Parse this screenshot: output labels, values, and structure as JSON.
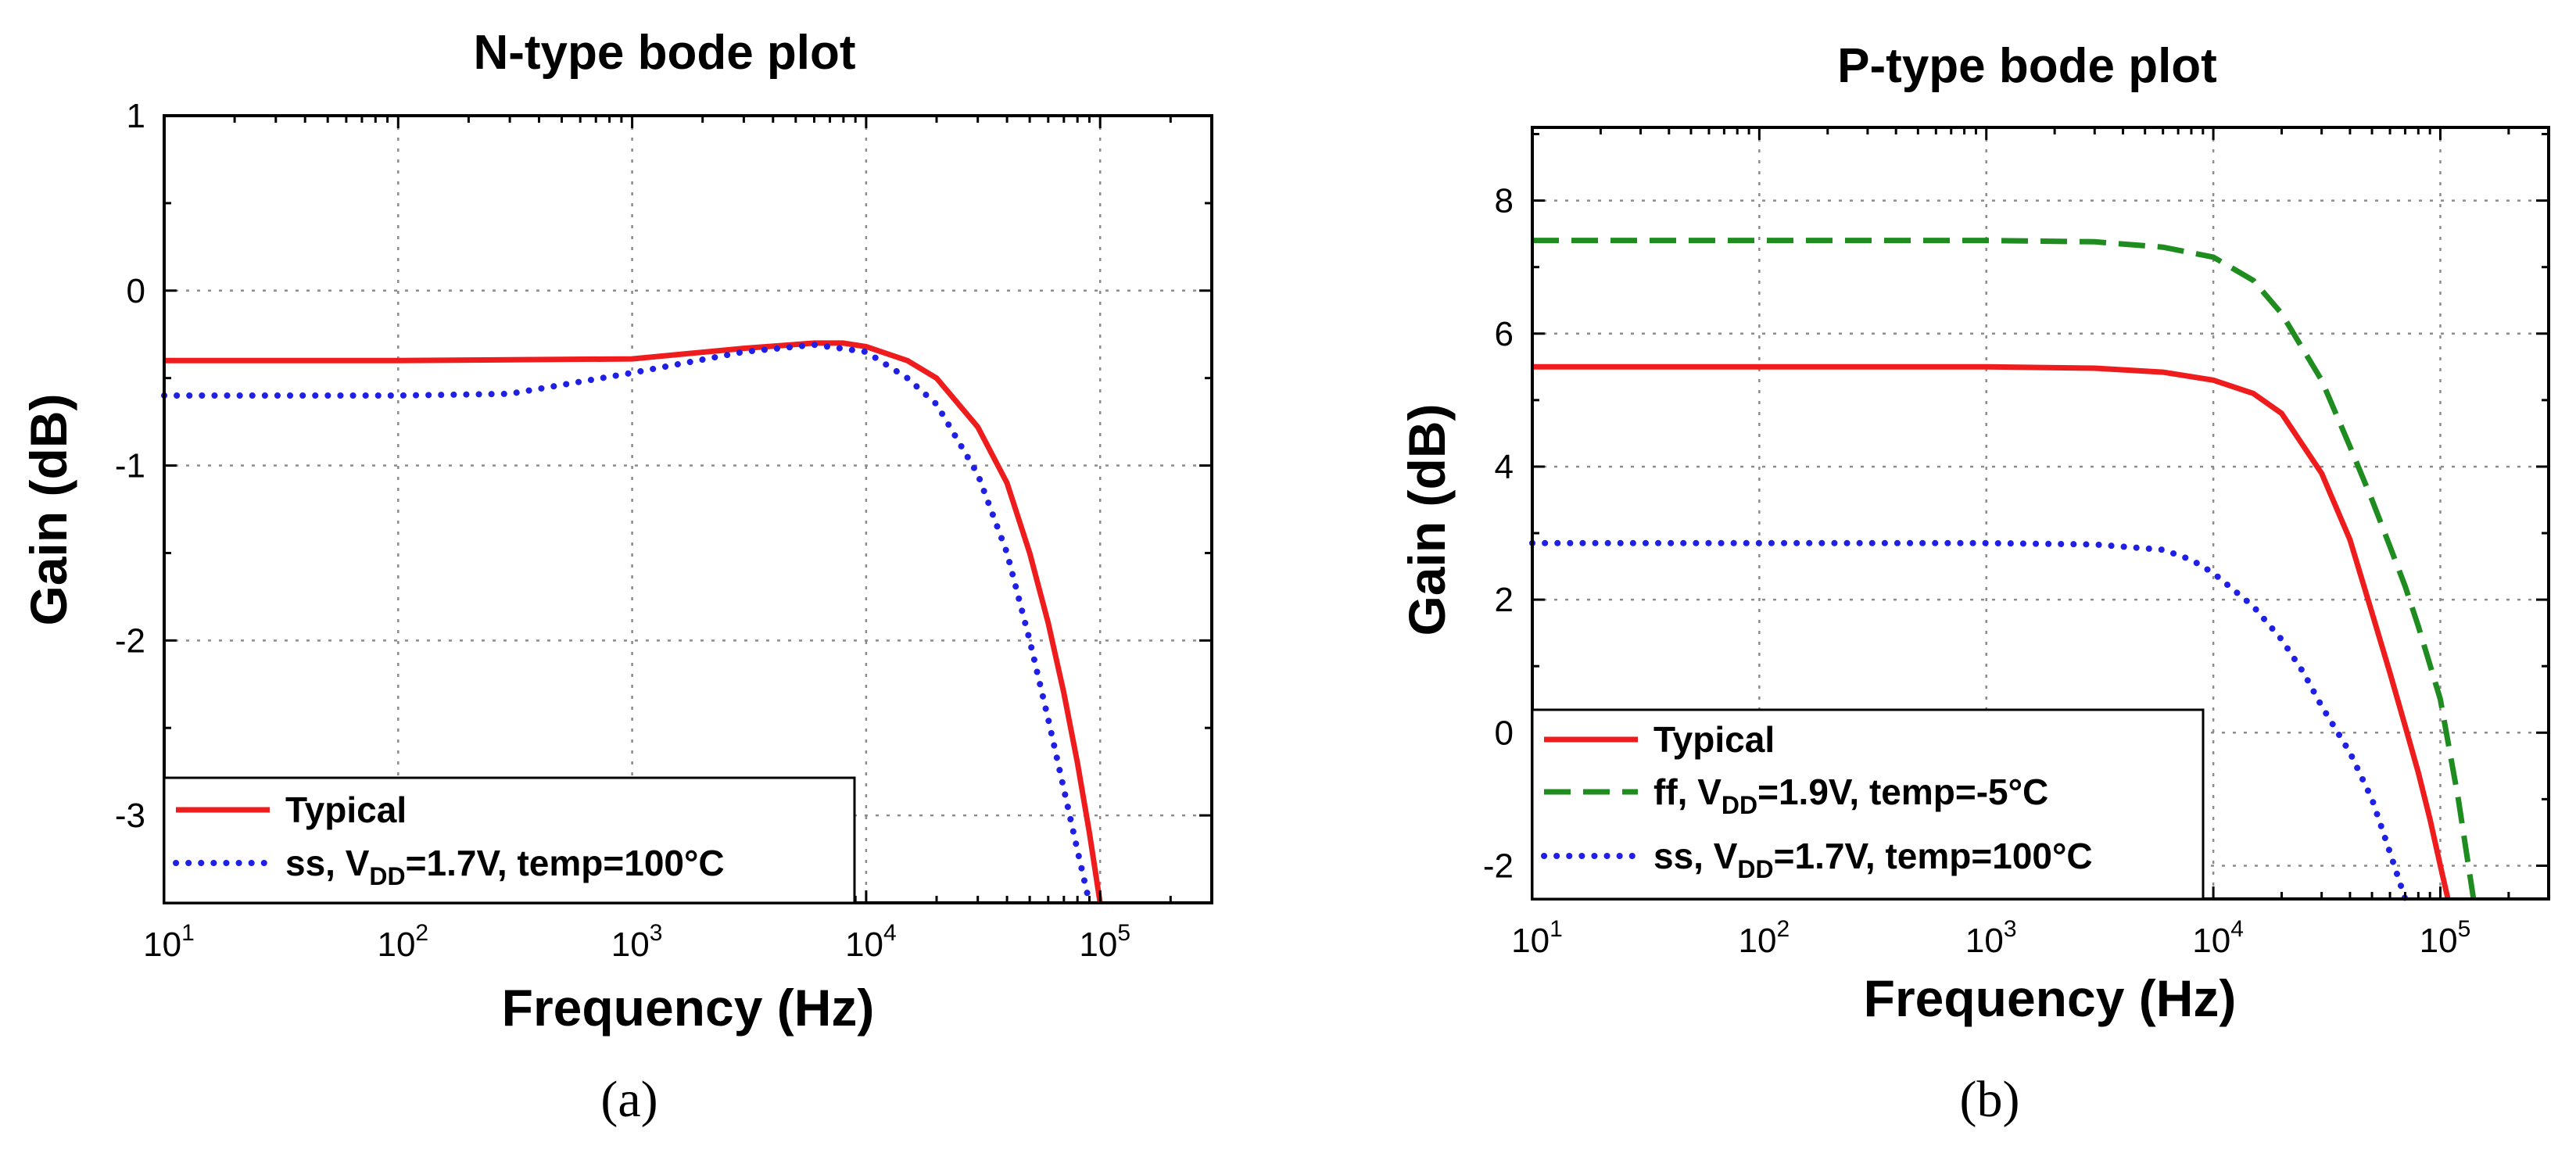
{
  "chart_data": [
    {
      "type": "line",
      "panel_label": "(a)",
      "title": "N-type bode plot",
      "xlabel": "Frequency (Hz)",
      "ylabel": "Gain (dB)",
      "xscale": "log",
      "xlim": [
        10,
        300000
      ],
      "ylim": [
        -3.5,
        1
      ],
      "x_ticks": [
        {
          "base": "10",
          "exp": "1"
        },
        {
          "base": "10",
          "exp": "2"
        },
        {
          "base": "10",
          "exp": "3"
        },
        {
          "base": "10",
          "exp": "4"
        },
        {
          "base": "10",
          "exp": "5"
        }
      ],
      "y_ticks": [
        "-3",
        "-2",
        "-1",
        "0",
        "1"
      ],
      "grid": true,
      "legend_position": "bottom-left",
      "series": [
        {
          "name": "Typical",
          "legend": {
            "pre": "Typical",
            "sub": "",
            "post": ""
          },
          "color": "#ee1c1c",
          "style": "solid",
          "x": [
            10,
            100,
            1000,
            3000,
            6000,
            8000,
            10000,
            15000,
            20000,
            30000,
            40000,
            50000,
            60000,
            70000,
            80000,
            90000,
            100000
          ],
          "y": [
            -0.4,
            -0.4,
            -0.39,
            -0.33,
            -0.3,
            -0.3,
            -0.32,
            -0.4,
            -0.5,
            -0.78,
            -1.1,
            -1.5,
            -1.9,
            -2.3,
            -2.7,
            -3.1,
            -3.5
          ]
        },
        {
          "name": "ss, VDD=1.7V, temp=100°C",
          "legend": {
            "pre": "ss, V",
            "sub": "DD",
            "post": "=1.7V, temp=100°C"
          },
          "color": "#1f1fe6",
          "style": "dotted",
          "x": [
            10,
            100,
            300,
            1000,
            3000,
            6000,
            10000,
            15000,
            20000,
            30000,
            40000,
            50000,
            60000,
            70000,
            80000,
            90000
          ],
          "y": [
            -0.6,
            -0.6,
            -0.59,
            -0.47,
            -0.35,
            -0.31,
            -0.35,
            -0.5,
            -0.65,
            -1.05,
            -1.5,
            -2.0,
            -2.45,
            -2.85,
            -3.2,
            -3.5
          ]
        }
      ]
    },
    {
      "type": "line",
      "panel_label": "(b)",
      "title": "P-type bode plot",
      "xlabel": "Frequency (Hz)",
      "ylabel": "Gain (dB)",
      "xscale": "log",
      "xlim": [
        10,
        300000
      ],
      "ylim": [
        -2.5,
        9.1
      ],
      "x_ticks": [
        {
          "base": "10",
          "exp": "1"
        },
        {
          "base": "10",
          "exp": "2"
        },
        {
          "base": "10",
          "exp": "3"
        },
        {
          "base": "10",
          "exp": "4"
        },
        {
          "base": "10",
          "exp": "5"
        }
      ],
      "y_ticks": [
        "-2",
        "0",
        "2",
        "4",
        "6",
        "8"
      ],
      "grid": true,
      "legend_position": "bottom-left",
      "series": [
        {
          "name": "Typical",
          "legend": {
            "pre": "Typical",
            "sub": "",
            "post": ""
          },
          "color": "#ee1c1c",
          "style": "solid",
          "x": [
            10,
            100,
            1000,
            3000,
            6000,
            10000,
            15000,
            20000,
            30000,
            40000,
            50000,
            60000,
            70000,
            80000,
            90000,
            100000,
            108000
          ],
          "y": [
            5.5,
            5.5,
            5.5,
            5.48,
            5.42,
            5.3,
            5.1,
            4.8,
            3.9,
            2.9,
            1.8,
            0.9,
            0.1,
            -0.6,
            -1.3,
            -2.0,
            -2.5
          ]
        },
        {
          "name": "ff, VDD=1.9V, temp=-5°C",
          "legend": {
            "pre": "ff, V",
            "sub": "DD",
            "post": "=1.9V, temp=-5°C"
          },
          "color": "#1e8c1e",
          "style": "dashed",
          "x": [
            10,
            100,
            1000,
            3000,
            6000,
            10000,
            15000,
            20000,
            30000,
            40000,
            50000,
            60000,
            70000,
            80000,
            100000,
            120000,
            140000
          ],
          "y": [
            7.4,
            7.4,
            7.4,
            7.38,
            7.3,
            7.15,
            6.8,
            6.3,
            5.3,
            4.3,
            3.5,
            2.8,
            2.2,
            1.6,
            0.5,
            -1.0,
            -2.5
          ]
        },
        {
          "name": "ss, VDD=1.7V, temp=100°C",
          "legend": {
            "pre": "ss, V",
            "sub": "DD",
            "post": "=1.7V, temp=100°C"
          },
          "color": "#1f1fe6",
          "style": "dotted",
          "x": [
            10,
            100,
            1000,
            3000,
            6000,
            8000,
            10000,
            15000,
            20000,
            25000,
            30000,
            40000,
            50000,
            60000,
            70000
          ],
          "y": [
            2.85,
            2.85,
            2.85,
            2.83,
            2.75,
            2.6,
            2.4,
            1.9,
            1.4,
            0.9,
            0.4,
            -0.3,
            -1.0,
            -1.8,
            -2.5
          ]
        }
      ]
    }
  ]
}
